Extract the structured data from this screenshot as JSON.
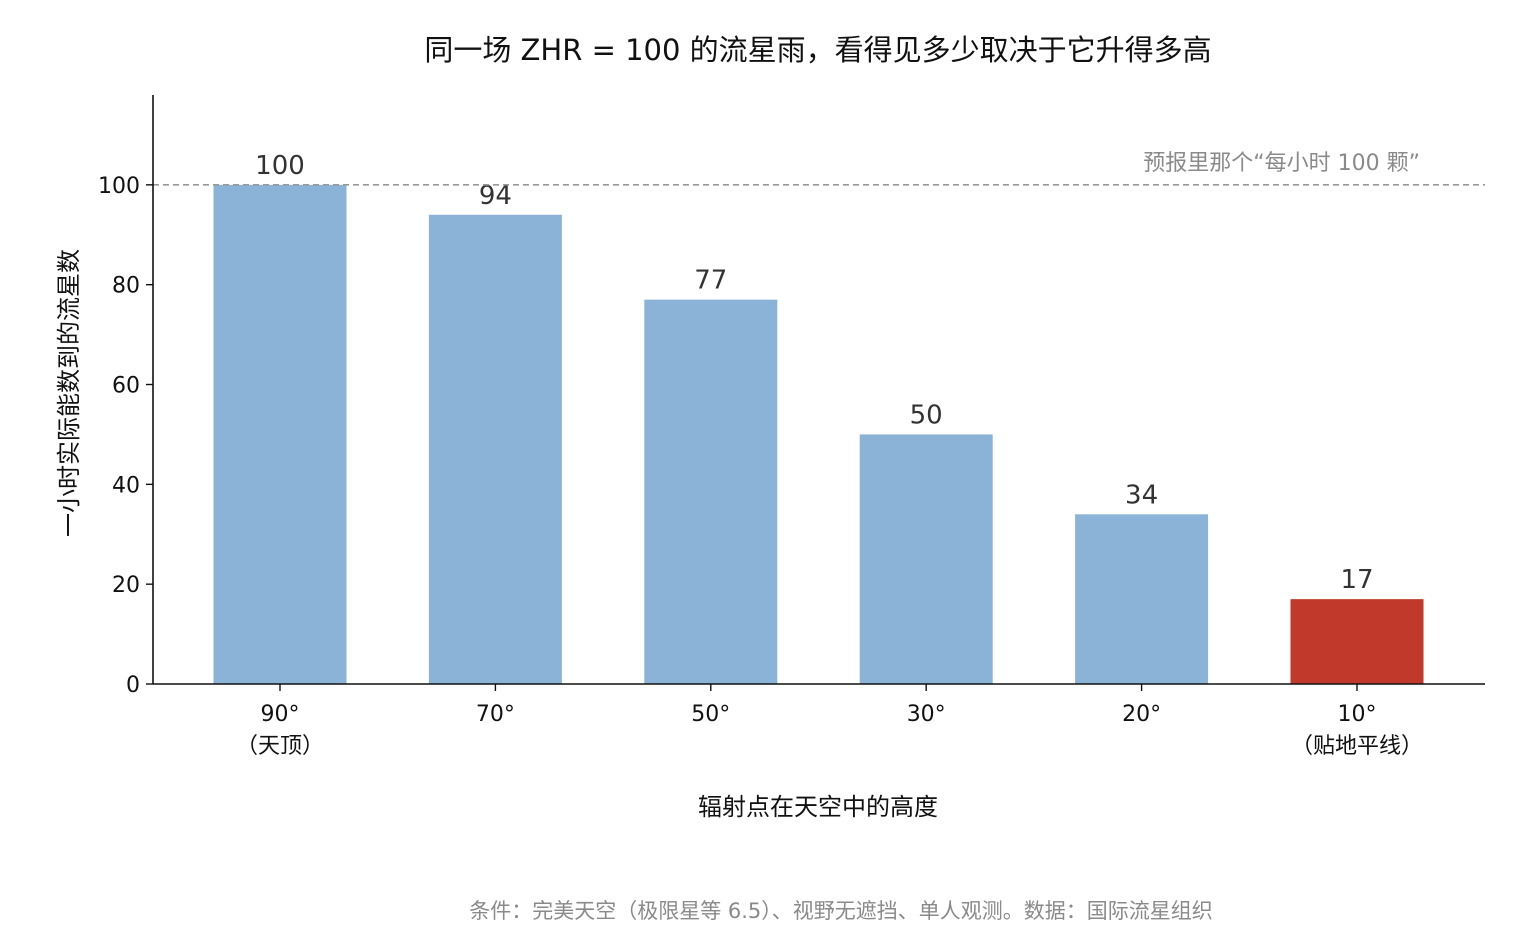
{
  "chart_data": {
    "type": "bar",
    "title": "同一场 ZHR = 100 的流星雨，看得见多少取决于它升得多高",
    "xlabel": "辐射点在天空中的高度",
    "ylabel": "一小时实际能数到的流星数",
    "categories": [
      "90°",
      "70°",
      "50°",
      "30°",
      "20°",
      "10°"
    ],
    "category_sublabels": [
      "（天顶）",
      "",
      "",
      "",
      "",
      "（贴地平线）"
    ],
    "values": [
      100,
      94,
      77,
      50,
      34,
      17
    ],
    "ylim": [
      0,
      118
    ],
    "yticks": [
      0,
      20,
      40,
      60,
      80,
      100
    ],
    "grid": false,
    "bar_colors": [
      "#8bb3d8",
      "#8bb3d8",
      "#8bb3d8",
      "#8bb3d8",
      "#8bb3d8",
      "#c0392b"
    ],
    "reference_line": {
      "value": 100,
      "label": "预报里那个“每小时 100 颗”",
      "color": "#999999"
    },
    "footer": "条件：完美天空（极限星等 6.5）、视野无遮挡、单人观测。数据：国际流星组织"
  }
}
